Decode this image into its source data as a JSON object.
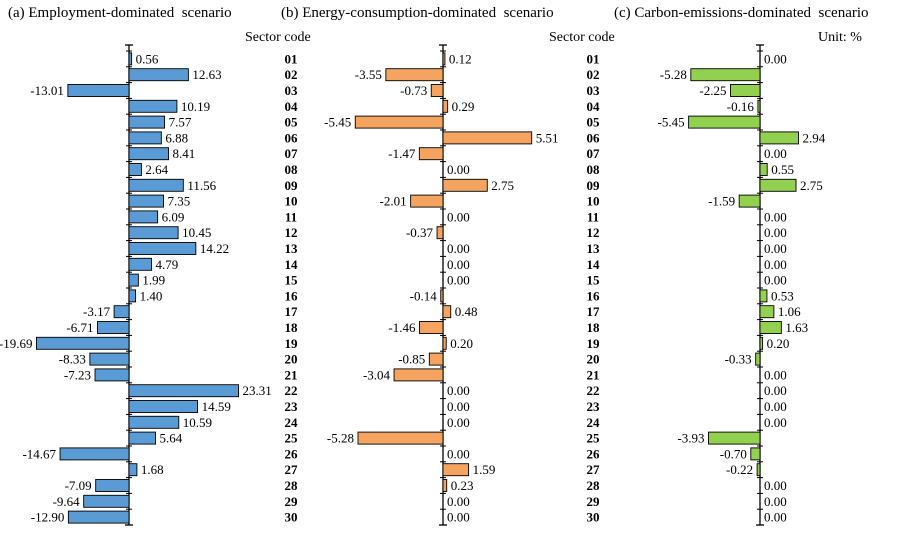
{
  "chart_data": {
    "type": "bar",
    "orientation": "horizontal",
    "sector_code_label": "Sector code",
    "unit_label": "Unit: %",
    "categories": [
      "01",
      "02",
      "03",
      "04",
      "05",
      "06",
      "07",
      "08",
      "09",
      "10",
      "11",
      "12",
      "13",
      "14",
      "15",
      "16",
      "17",
      "18",
      "19",
      "20",
      "21",
      "22",
      "23",
      "24",
      "25",
      "26",
      "27",
      "28",
      "29",
      "30"
    ],
    "panels": [
      {
        "id": "a",
        "title": "(a) Employment-dominated  scenario",
        "color": "#5b9bd5",
        "series_name": "Employment-dominated scenario",
        "values": [
          0.56,
          12.63,
          -13.01,
          10.19,
          7.57,
          6.88,
          8.41,
          2.64,
          11.56,
          7.35,
          6.09,
          10.45,
          14.22,
          4.79,
          1.99,
          1.4,
          -3.17,
          -6.71,
          -19.69,
          -8.33,
          -7.23,
          23.31,
          14.59,
          10.59,
          5.64,
          -14.67,
          1.68,
          -7.09,
          -9.64,
          -12.9
        ],
        "labels": [
          "0.56",
          "12.63",
          "-13.01",
          "10.19",
          "7.57",
          "6.88",
          "8.41",
          "2.64",
          "11.56",
          "7.35",
          "6.09",
          "10.45",
          "14.22",
          "4.79",
          "1.99",
          "1.40",
          "-3.17",
          "-6.71",
          "-19.69",
          "-8.33",
          "-7.23",
          "23.31",
          "14.59",
          "10.59",
          "5.64",
          "-14.67",
          "1.68",
          "-7.09",
          "-9.64",
          "-12.90"
        ]
      },
      {
        "id": "b",
        "title": "(b) Energy-consumption-dominated  scenario",
        "color": "#f4a460",
        "series_name": "Energy-consumption-dominated scenario",
        "values": [
          0.12,
          -3.55,
          -0.73,
          0.29,
          -5.45,
          5.51,
          -1.47,
          0.0,
          2.75,
          -2.01,
          0.0,
          -0.37,
          0.0,
          0.0,
          0.0,
          -0.14,
          0.48,
          -1.46,
          0.2,
          -0.85,
          -3.04,
          0.0,
          0.0,
          0.0,
          -5.28,
          0.0,
          1.59,
          0.23,
          0.0,
          0.0
        ],
        "labels": [
          "0.12",
          "-3.55",
          "-0.73",
          "0.29",
          "-5.45",
          "5.51",
          "-1.47",
          "0.00",
          "2.75",
          "-2.01",
          "0.00",
          "-0.37",
          "0.00",
          "0.00",
          "0.00",
          "-0.14",
          "0.48",
          "-1.46",
          "0.20",
          "-0.85",
          "-3.04",
          "0.00",
          "0.00",
          "0.00",
          "-5.28",
          "0.00",
          "1.59",
          "0.23",
          "0.00",
          "0.00"
        ]
      },
      {
        "id": "c",
        "title": "(c) Carbon-emissions-dominated  scenario",
        "color": "#92d050",
        "series_name": "Carbon-emissions-dominated scenario",
        "values": [
          0.0,
          -5.28,
          -2.25,
          -0.16,
          -5.45,
          2.94,
          0.0,
          0.55,
          2.75,
          -1.59,
          0.0,
          0.0,
          0.0,
          0.0,
          0.0,
          0.53,
          1.06,
          1.63,
          0.2,
          -0.33,
          0.0,
          0.0,
          0.0,
          0.0,
          -3.93,
          -0.7,
          -0.22,
          0.0,
          0.0,
          0.0
        ],
        "labels": [
          "0.00",
          "-5.28",
          "-2.25",
          "-0.16",
          "-5.45",
          "2.94",
          "0.00",
          "0.55",
          "2.75",
          "-1.59",
          "0.00",
          "0.00",
          "0.00",
          "0.00",
          "0.00",
          "0.53",
          "1.06",
          "1.63",
          "0.20",
          "-0.33",
          "0.00",
          "0.00",
          "0.00",
          "0.00",
          "-3.93",
          "-0.70",
          "-0.22",
          "0.00",
          "0.00",
          "0.00"
        ]
      }
    ]
  }
}
